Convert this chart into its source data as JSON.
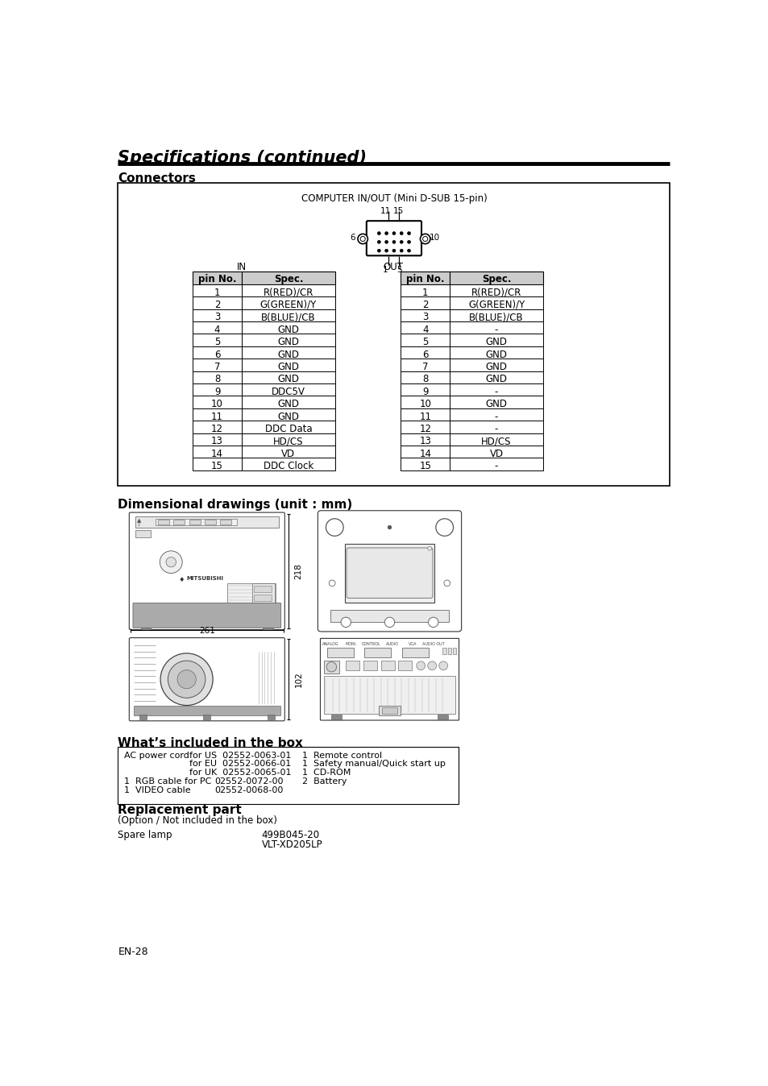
{
  "title": "Specifications (continued)",
  "section1_title": "Connectors",
  "connector_label": "COMPUTER IN/OUT (Mini D-SUB 15-pin)",
  "in_label": "IN",
  "out_label": "OUT",
  "table_header": [
    "pin No.",
    "Spec."
  ],
  "in_table": [
    [
      "1",
      "R(RED)/CR"
    ],
    [
      "2",
      "G(GREEN)/Y"
    ],
    [
      "3",
      "B(BLUE)/CB"
    ],
    [
      "4",
      "GND"
    ],
    [
      "5",
      "GND"
    ],
    [
      "6",
      "GND"
    ],
    [
      "7",
      "GND"
    ],
    [
      "8",
      "GND"
    ],
    [
      "9",
      "DDC5V"
    ],
    [
      "10",
      "GND"
    ],
    [
      "11",
      "GND"
    ],
    [
      "12",
      "DDC Data"
    ],
    [
      "13",
      "HD/CS"
    ],
    [
      "14",
      "VD"
    ],
    [
      "15",
      "DDC Clock"
    ]
  ],
  "out_table": [
    [
      "1",
      "R(RED)/CR"
    ],
    [
      "2",
      "G(GREEN)/Y"
    ],
    [
      "3",
      "B(BLUE)/CB"
    ],
    [
      "4",
      "-"
    ],
    [
      "5",
      "GND"
    ],
    [
      "6",
      "GND"
    ],
    [
      "7",
      "GND"
    ],
    [
      "8",
      "GND"
    ],
    [
      "9",
      "-"
    ],
    [
      "10",
      "GND"
    ],
    [
      "11",
      "-"
    ],
    [
      "12",
      "-"
    ],
    [
      "13",
      "HD/CS"
    ],
    [
      "14",
      "VD"
    ],
    [
      "15",
      "-"
    ]
  ],
  "section2_title": "Dimensional drawings (unit : mm)",
  "dim_218": "218",
  "dim_261": "261",
  "dim_102": "102",
  "section3_title": "What’s included in the box",
  "box_row1_left": "AC power cord",
  "box_row1_mid": "for US  02552-0063-01",
  "box_row2_mid": "for EU  02552-0066-01",
  "box_row3_mid": "for UK  02552-0065-01",
  "box_row4_left": "1  RGB cable for PC",
  "box_row4_mid": "02552-0072-00",
  "box_row5_left": "1  VIDEO cable",
  "box_row5_mid": "02552-0068-00",
  "box_right1": "1  Remote control",
  "box_right2": "1  Safety manual/Quick start up",
  "box_right3": "1  CD-ROM",
  "box_right4": "2  Battery",
  "section4_title": "Replacement part",
  "option_note": "(Option / Not included in the box)",
  "spare_lamp_label": "Spare lamp",
  "spare_lamp_val1": "499B045-20",
  "spare_lamp_val2": "VLT-XD205LP",
  "page_label": "EN-28",
  "bg_color": "#ffffff",
  "header_bg": "#cccccc",
  "table_border": "#000000",
  "outer_box_border": "#000000"
}
